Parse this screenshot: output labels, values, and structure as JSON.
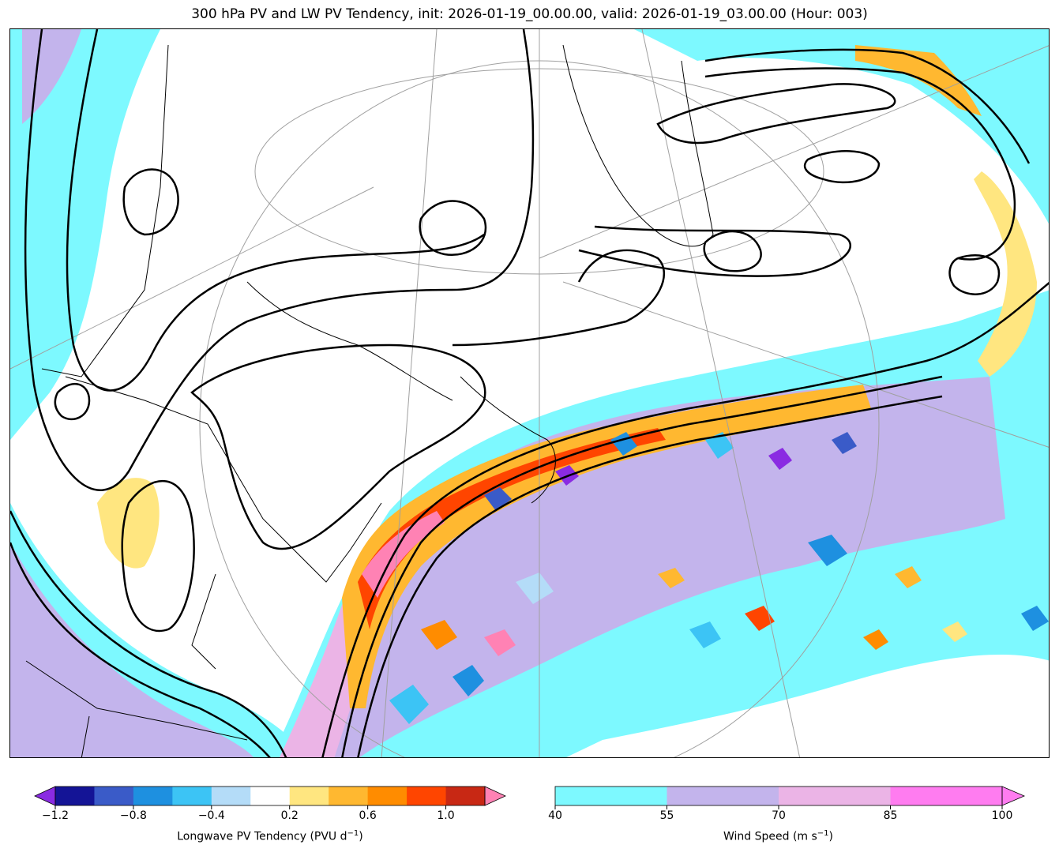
{
  "title": "300 hPa PV and LW PV Tendency, init: 2026-01-19_00.00.00, valid: 2026-01-19_03.00.00 (Hour: 003)",
  "colors": {
    "pv_tendency": [
      "#8a2be2",
      "#141496",
      "#3a5bc8",
      "#1e90e0",
      "#3cc4f5",
      "#b4dcf8",
      "#ffffff",
      "#ffe680",
      "#ffb830",
      "#ff8c00",
      "#ff4500",
      "#c82814",
      "#ff82b4"
    ],
    "wind_speed": [
      "#7df9ff",
      "#c3b4ec",
      "#ebb4e6",
      "#ff7cf0"
    ],
    "pv_contour": "#000000",
    "coastline": "#000000",
    "graticule": "#a0a0a0"
  },
  "colorbar_pv": {
    "label": "Longwave PV Tendency (PVU d",
    "label_sup": "−1",
    "label_end": ")",
    "ticks": [
      "−1.2",
      "−0.8",
      "−0.4",
      "0.2",
      "0.6",
      "1.0"
    ],
    "tick_values": [
      -1.2,
      -0.8,
      -0.4,
      0.2,
      0.6,
      1.0
    ],
    "levels": [
      -1.2,
      -1.0,
      -0.8,
      -0.6,
      -0.4,
      -0.2,
      0.2,
      0.4,
      0.6,
      0.8,
      1.0,
      1.2
    ],
    "extend": "both"
  },
  "colorbar_wind": {
    "label": "Wind Speed (m s",
    "label_sup": "−1",
    "label_end": ")",
    "ticks": [
      "40",
      "55",
      "70",
      "85",
      "100"
    ],
    "tick_values": [
      40,
      55,
      70,
      85,
      100
    ],
    "levels": [
      40,
      55,
      70,
      85,
      100
    ],
    "extend": "max"
  }
}
